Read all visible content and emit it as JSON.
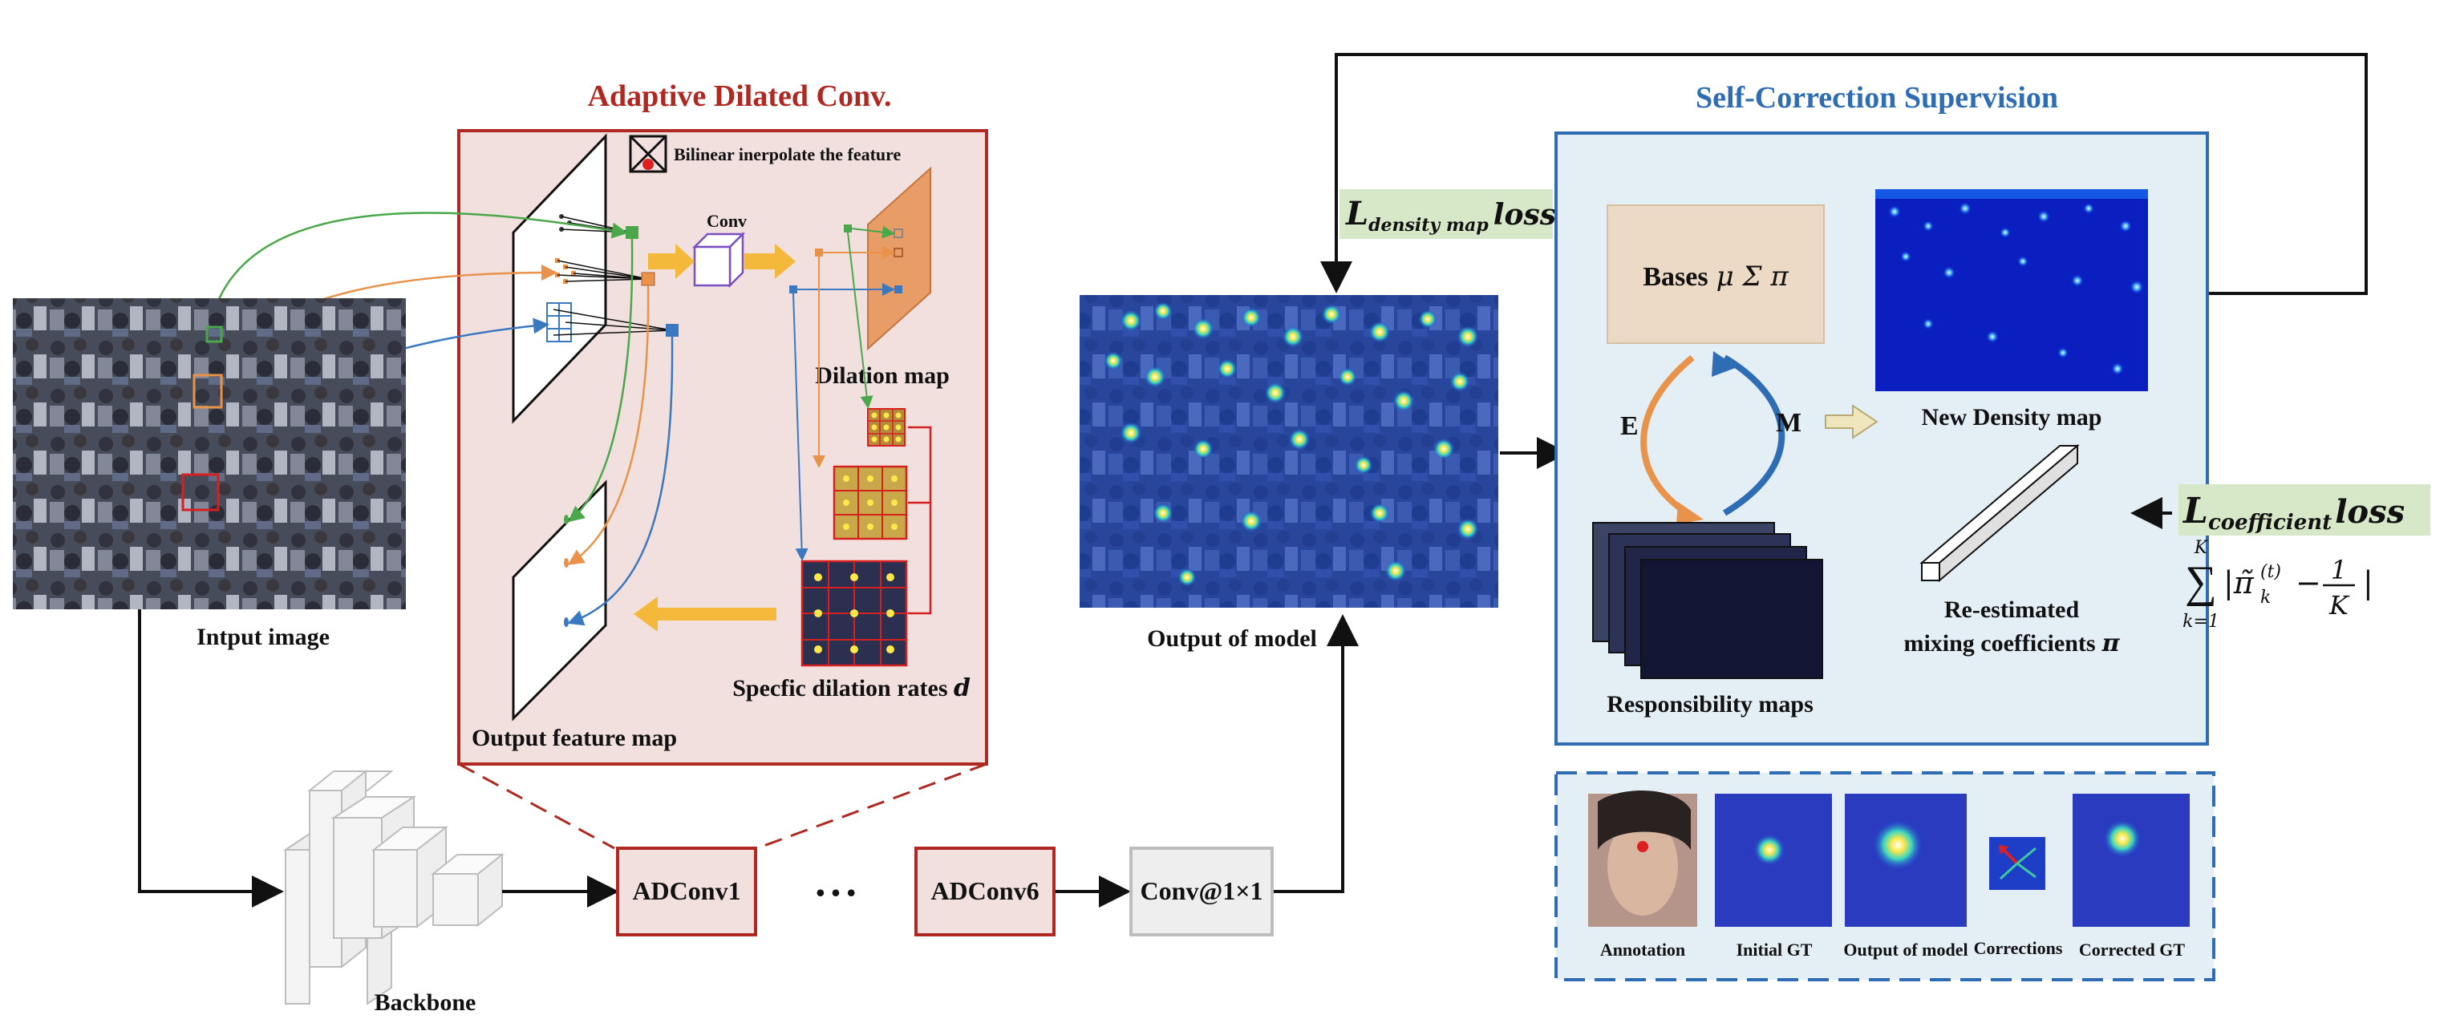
{
  "adaptive_dilated_conv": {
    "title": "Adaptive Dilated Conv.",
    "bilinear_note": "Bilinear inerpolate the feature",
    "conv_label": "Conv",
    "dilation_map_label": "Dilation map",
    "dilation_rates_label": "Specfic dilation rates",
    "dilation_rates_symbol": "d",
    "output_feature_map_label": "Output feature map"
  },
  "input": {
    "label": "Intput image"
  },
  "backbone": {
    "label": "Backbone"
  },
  "modules": {
    "adconv1": "ADConv1",
    "ellipsis": "• • •",
    "adconv6": "ADConv6",
    "conv1x1": "Conv@1×1"
  },
  "output": {
    "label": "Output of model"
  },
  "density_loss": {
    "L": "L",
    "sub": "density map",
    "suffix": "loss"
  },
  "self_correction": {
    "title": "Self-Correction Supervision",
    "bases_label": "Bases",
    "bases_symbols": "μ Σ π",
    "e_label": "E",
    "m_label": "M",
    "new_density_label": "New Density map",
    "responsibility_label": "Responsibility maps",
    "reestimated_line1": "Re-estimated",
    "reestimated_line2": "mixing coefficients",
    "reestimated_symbol": "π"
  },
  "coefficient_loss": {
    "L": "L",
    "sub": "coefficient",
    "suffix": "loss",
    "formula_sum_upper": "K",
    "formula_sum_lower": "k=1",
    "formula_body": "|π̃",
    "formula_sub": "k",
    "formula_sup": "(t)",
    "formula_minus": "−",
    "formula_num": "1",
    "formula_den": "K",
    "formula_close": "|"
  },
  "correction_examples": {
    "labels": [
      "Annotation",
      "Initial GT",
      "Output of model",
      "Corrections",
      "Corrected GT"
    ]
  },
  "colors": {
    "red": "#b02822",
    "blue": "#2e6db4",
    "pink_fill": "#f2e0df",
    "blue_fill": "#e4eef5",
    "loss_green": "#d7e8c8",
    "arrow_yellow": "#f4b93a",
    "green_line": "#4aa84a",
    "orange_line": "#e8924a",
    "blue_line": "#3a78c0"
  }
}
